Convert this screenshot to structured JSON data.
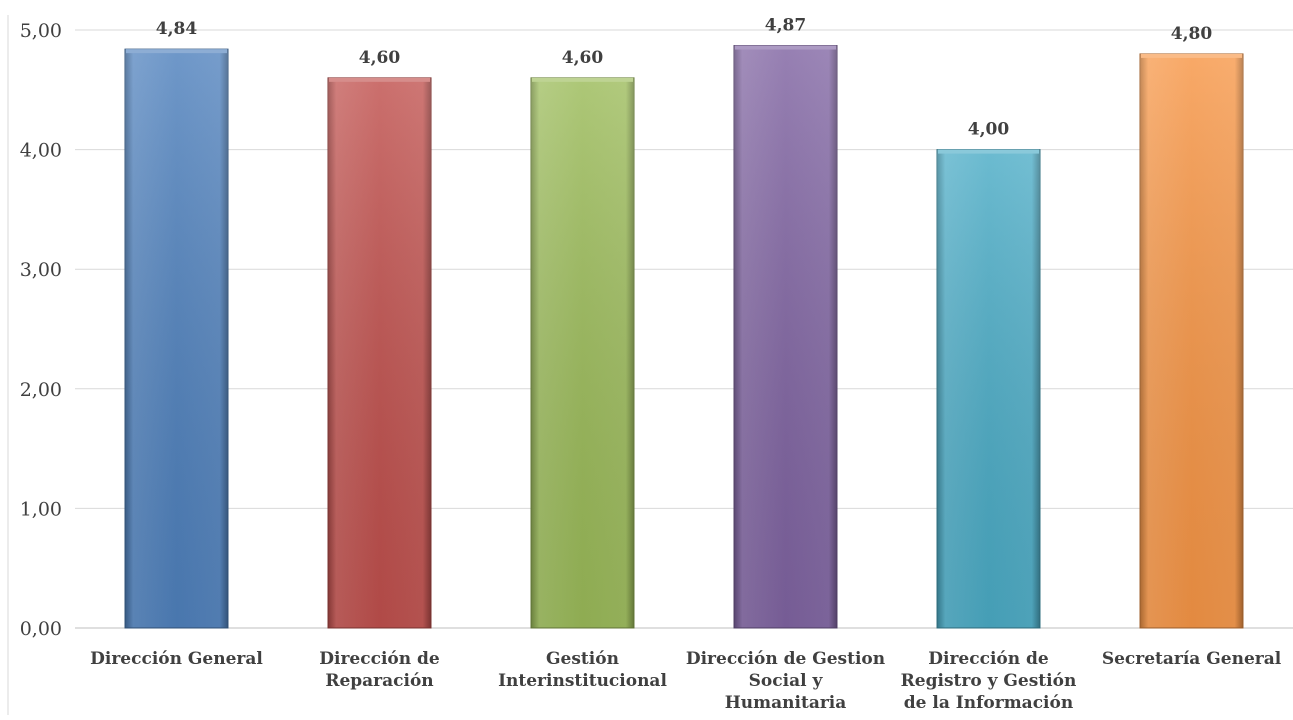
{
  "chart_data": {
    "type": "bar",
    "categories": [
      [
        "Dirección General"
      ],
      [
        "Dirección de",
        "Reparación"
      ],
      [
        "Gestión",
        "Interinstitucional"
      ],
      [
        "Dirección de Gestion",
        "Social y",
        "Humanitaria"
      ],
      [
        "Dirección de",
        "Registro y Gestión",
        "de la Información"
      ],
      [
        "Secretaría General"
      ]
    ],
    "values": [
      4.84,
      4.6,
      4.6,
      4.87,
      4.0,
      4.8
    ],
    "data_labels": [
      "4,84",
      "4,60",
      "4,60",
      "4,87",
      "4,00",
      "4,80"
    ],
    "y_ticks": [
      "0,00",
      "1,00",
      "2,00",
      "3,00",
      "4,00",
      "5,00"
    ],
    "ylim": [
      0,
      5
    ],
    "title": "",
    "xlabel": "",
    "ylabel": "",
    "grid": true,
    "legend": "none",
    "colors": [
      "#4f81bd",
      "#c0504d",
      "#9bbb59",
      "#8064a2",
      "#4bacc6",
      "#f79646"
    ]
  }
}
